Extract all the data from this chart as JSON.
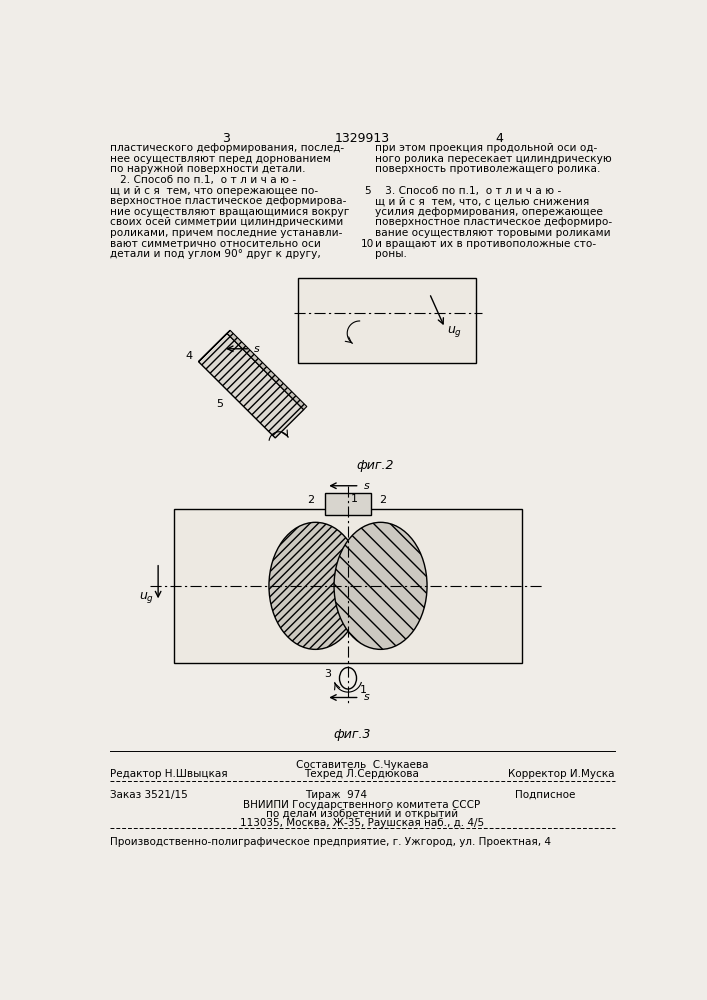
{
  "bg_color": "#f0ede8",
  "page_number_left": "3",
  "page_number_center": "1329913",
  "page_number_right": "4",
  "text_col1_lines": [
    "пластического деформирования, послед-",
    "нее осуществляют перед дорнованием",
    "по наружной поверхности детали.",
    "   2. Способ по п.1,  о т л и ч а ю -",
    "щ и й с я  тем, что опережающее по-",
    "верхностное пластическое деформирова-",
    "ние осуществляют вращающимися вокруг",
    "своих осей симметрии цилиндрическими",
    "роликами, причем последние устанавли-",
    "вают симметрично относительно оси",
    "детали и под углом 90° друг к другу,"
  ],
  "text_col2_lines": [
    "при этом проекция продольной оси од-",
    "ного ролика пересекает цилиндрическую",
    "поверхность противолежащего ролика.",
    "",
    "   3. Способ по п.1,  о т л и ч а ю -",
    "щ и й с я  тем, что, с целью снижения",
    "усилия деформирования, опережающее",
    "поверхностное пластическое деформиро-",
    "вание осуществляют торовыми роликами",
    "и вращают их в противоположные сто-",
    "роны."
  ],
  "line_number_5": "5",
  "line_number_10": "10",
  "fig2_label": "фиг.2",
  "fig3_label": "фиг.3",
  "footer_col1_r1": "Редактор Н.Швыцкая",
  "footer_col2_r1": "Составитель  С.Чукаева",
  "footer_col2_r2": "Техред Л.Сердюкова",
  "footer_col3_r1": "Корректор И.Муска",
  "footer_order": "Заказ 3521/15",
  "footer_tirazh": "Тираж  974",
  "footer_podpis": "Подписное",
  "footer_vniip1": "ВНИИПИ Государственного комитета СССР",
  "footer_vniip2": "по делам изобретений и открытий",
  "footer_vniip3": "113035, Москва, Ж-35, Раушская наб., д. 4/5",
  "footer_last": "Производственно-полиграфическое предприятие, г. Ужгород, ул. Проектная, 4"
}
